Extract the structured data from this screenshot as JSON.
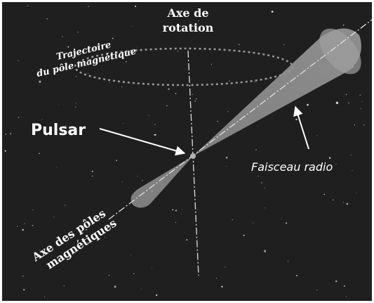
{
  "labels": {
    "rotation_axis": [
      "Axe de",
      "rotation"
    ],
    "pole_trajectory": [
      "Trajectoire",
      "du pôle magnétique"
    ],
    "pulsar": "Pulsar",
    "radio_beam": "Faisceau radio",
    "magnetic_axis": [
      "Axe des pôles",
      "magnétiques"
    ]
  }
}
